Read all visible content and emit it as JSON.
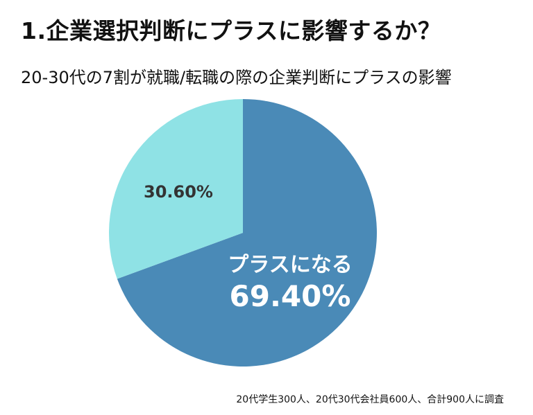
{
  "header": {
    "title": "1.企業選択判断にプラスに影響するか？",
    "subtitle": "20-30代の7割が就職/転職の際の企業判断にプラスの影響"
  },
  "footnote": "20代学生300人、20代30代会社員600人、合計900人に調査",
  "colors": {
    "slice_plus": "#4a8ab7",
    "slice_other": "#8fe2e5",
    "label_dark": "#333333",
    "label_light": "#ffffff"
  },
  "chart_data": {
    "type": "pie",
    "title": "",
    "slices": [
      {
        "label": "プラスになる",
        "value": 69.4,
        "value_label": "69.40%",
        "color": "#4a8ab7"
      },
      {
        "label": "",
        "value": 30.6,
        "value_label": "30.60%",
        "color": "#8fe2e5"
      }
    ]
  }
}
